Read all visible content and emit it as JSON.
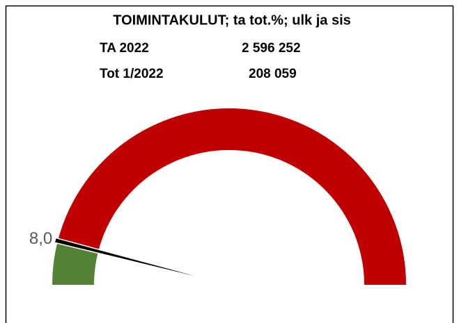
{
  "chart_data": {
    "type": "gauge",
    "title": "TOIMINTAKULUT; ta tot.%; ulk ja sis",
    "info": [
      {
        "label": "TA 2022",
        "value": "2 596 252"
      },
      {
        "label": "Tot 1/2022",
        "value": "208 059"
      }
    ],
    "values": [
      8
    ],
    "value_labels": [
      "8,0"
    ],
    "ylim": [
      0,
      100
    ],
    "colors": [
      "#548235",
      "#c00000"
    ],
    "needle_color": "#000000"
  }
}
